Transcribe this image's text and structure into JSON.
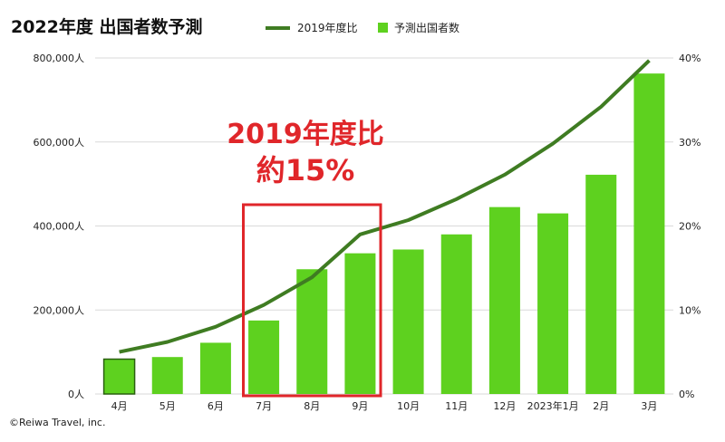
{
  "chart_data": {
    "type": "bar",
    "title": "2022年度 出国者数予測",
    "categories": [
      "4月",
      "5月",
      "6月",
      "7月",
      "8月",
      "9月",
      "10月",
      "11月",
      "12月",
      "2023年1月",
      "2月",
      "3月"
    ],
    "series": [
      {
        "name": "予測出国者数",
        "kind": "bar",
        "axis": "left",
        "values": [
          83000,
          88000,
          122000,
          175000,
          297000,
          335000,
          344000,
          380000,
          445000,
          430000,
          522000,
          763000
        ]
      },
      {
        "name": "2019年度比",
        "kind": "line",
        "axis": "right",
        "values": [
          5.0,
          6.2,
          8.0,
          10.6,
          13.9,
          19.0,
          20.7,
          23.2,
          26.1,
          29.8,
          34.2,
          39.7
        ]
      }
    ],
    "y_left": {
      "ylim": [
        0,
        800000
      ],
      "ticks": [
        "0人",
        "200,000人",
        "400,000人",
        "600,000人",
        "800,000人"
      ]
    },
    "y_right": {
      "ylim": [
        0,
        40
      ],
      "ticks": [
        "0%",
        "10%",
        "20%",
        "30%",
        "40%"
      ]
    },
    "grid": "horizontal",
    "legend": "top",
    "highlight": {
      "categories": [
        "7月",
        "8月",
        "9月"
      ],
      "label_line1": "2019年度比",
      "label_line2": "約15%"
    },
    "colors": {
      "bar": "#5ed11f",
      "bar_first_border": "#2a5f10",
      "line": "#3f7c22",
      "highlight": "#e0262a",
      "grid": "#d9d9d9"
    },
    "credit": "©Reiwa Travel, inc."
  }
}
